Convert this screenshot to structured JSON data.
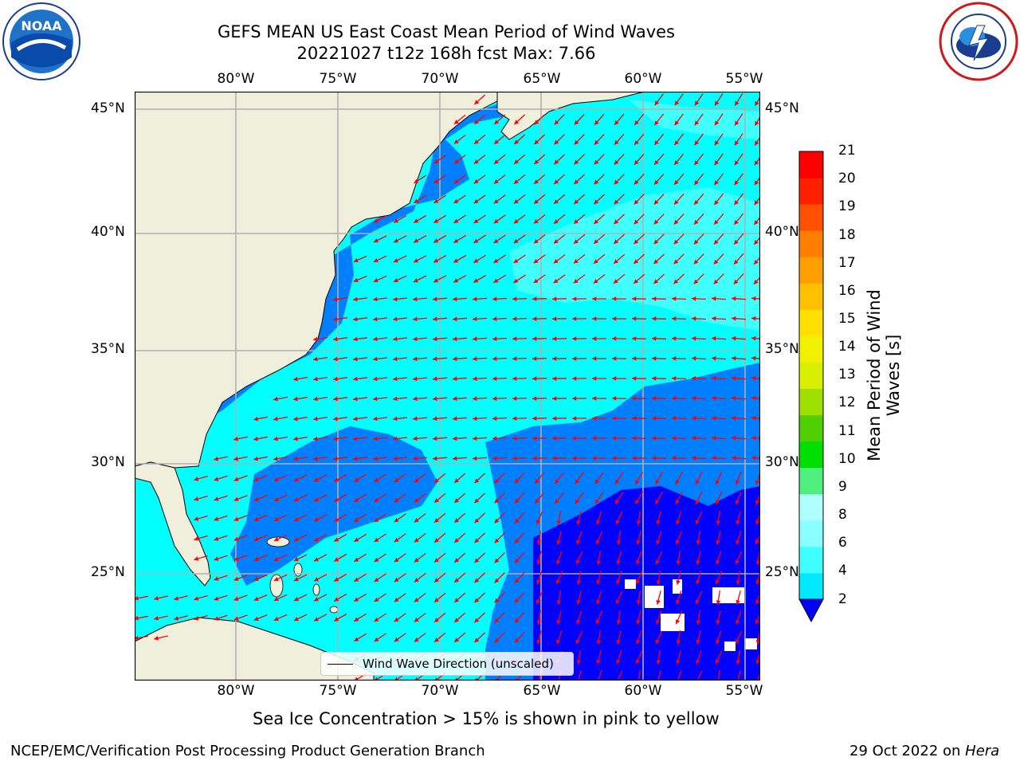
{
  "title": {
    "line1": "GEFS MEAN US East Coast Mean Period of Wind Waves",
    "line2": "20221027 t12z 168h fcst   Max: 7.66"
  },
  "logos": {
    "left": "noaa-logo",
    "right": "nws-logo",
    "left_text": "NOAA"
  },
  "map": {
    "lon_labels_top": [
      "80°W",
      "75°W",
      "70°W",
      "65°W",
      "60°W",
      "55°W"
    ],
    "lon_labels_bottom": [
      "80°W",
      "75°W",
      "70°W",
      "65°W",
      "60°W",
      "55°W"
    ],
    "lat_labels_left": [
      "45°N",
      "40°N",
      "35°N",
      "30°N",
      "25°N"
    ],
    "lat_labels_right": [
      "45°N",
      "40°N",
      "35°N",
      "30°N",
      "25°N"
    ],
    "lon_range": [
      -85,
      -54.5
    ],
    "lat_range": [
      20.5,
      46
    ],
    "land_color": "#efefdc",
    "arrow_color": "#ff0000"
  },
  "colorbar": {
    "label": "Mean Period of Wind Waves [s]",
    "ticks": [
      "2",
      "4",
      "6",
      "8",
      "9",
      "10",
      "11",
      "12",
      "13",
      "14",
      "15",
      "16",
      "17",
      "18",
      "19",
      "20",
      "21"
    ],
    "colors": [
      "#0064ff",
      "#00e8ff",
      "#40ffff",
      "#8affff",
      "#b0ffff",
      "#50f080",
      "#00e000",
      "#50d000",
      "#a0e000",
      "#d8f000",
      "#f0f000",
      "#ffe000",
      "#ffc000",
      "#ffa000",
      "#ff8000",
      "#ff5000",
      "#ff2000",
      "#ff0000"
    ],
    "under_color": "#0000ff"
  },
  "legend": {
    "text": "Wind Wave Direction (unscaled)"
  },
  "subnote": "Sea Ice Concentration > 15% is shown in pink to yellow",
  "footer": {
    "left": "NCEP/EMC/Verification Post Processing Product Generation Branch",
    "right_prefix": "29 Oct 2022 on ",
    "right_italic": "Hera"
  }
}
